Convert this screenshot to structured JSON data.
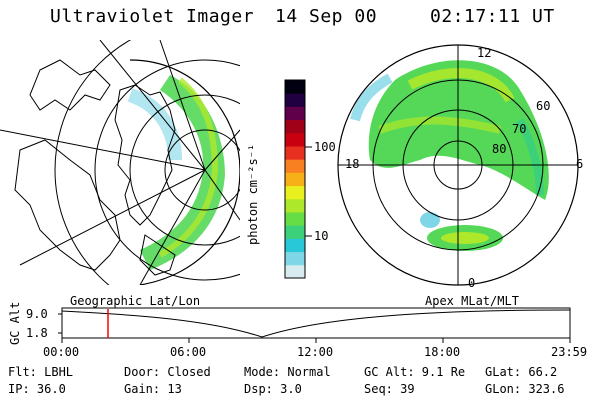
{
  "header": {
    "instrument": "Ultraviolet Imager",
    "date": "14 Sep 00",
    "time": "02:17:11 UT"
  },
  "colorbar": {
    "unit_label": "photon cm⁻²s⁻¹",
    "ticks": [
      "100",
      "10"
    ],
    "colors": [
      "#d8ecf0",
      "#7fd6e6",
      "#28c8d8",
      "#3cd07a",
      "#66dd44",
      "#aee82a",
      "#e8f020",
      "#f8b018",
      "#f88020",
      "#e83020",
      "#c80010",
      "#a00018",
      "#60004a",
      "#200040",
      "#000010"
    ]
  },
  "left_map": {
    "label": "Geographic Lat/Lon"
  },
  "right_map": {
    "label": "Apex MLat/MLT",
    "mlt_labels": [
      "12",
      "18",
      "6",
      "0"
    ],
    "lat_labels": [
      "60",
      "70",
      "80"
    ]
  },
  "timeline": {
    "ylabel": "GC Alt",
    "y_ticks": [
      "9.0",
      "1.8"
    ],
    "x_ticks": [
      "00:00",
      "06:00",
      "12:00",
      "18:00",
      "23:59"
    ],
    "marker_color": "#ff0000"
  },
  "info": {
    "flt": "Flt: LBHL",
    "ip": "IP: 36.0",
    "door": "Door: Closed",
    "gain": "Gain: 13",
    "mode": "Mode: Normal",
    "dsp": "Dsp:     3.0",
    "gc_alt": "GC Alt: 9.1 Re",
    "seq": "Seq: 39",
    "glat": "GLat:   66.2",
    "glon": "GLon: 323.6"
  }
}
